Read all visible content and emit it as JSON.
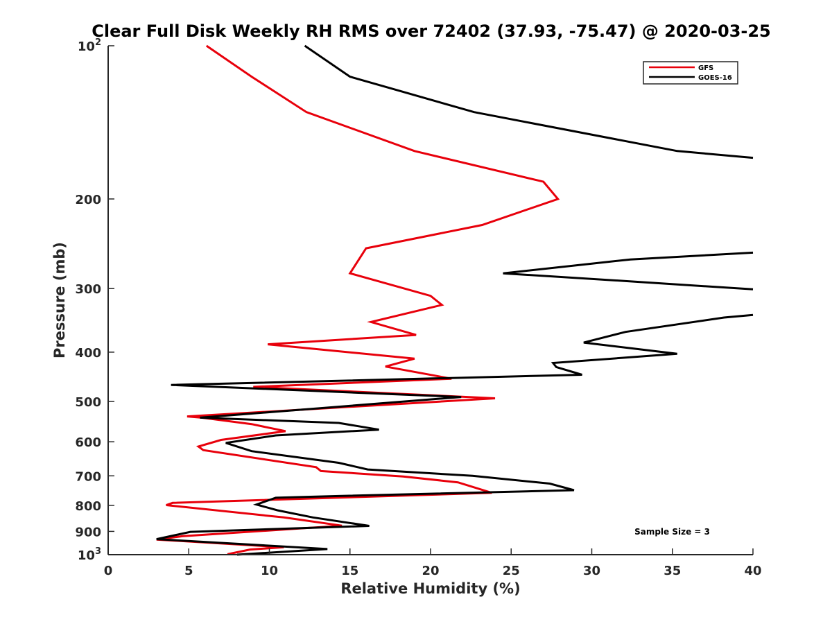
{
  "chart_data": {
    "type": "line",
    "title": "Clear Full Disk Weekly RH RMS over 72402 (37.93, -75.47) @ 2020-03-25",
    "xlabel": "Relative Humidity (%)",
    "ylabel": "Pressure (mb)",
    "xlim": [
      0,
      40
    ],
    "ylim": [
      100,
      1000
    ],
    "yscale": "log",
    "y_reversed": true,
    "x_ticks": [
      0,
      5,
      10,
      15,
      20,
      25,
      30,
      35,
      40
    ],
    "x_tick_labels": [
      "0",
      "5",
      "10",
      "15",
      "20",
      "25",
      "30",
      "35",
      "40"
    ],
    "y_ticks": [
      100,
      200,
      300,
      400,
      500,
      600,
      700,
      800,
      900,
      1000
    ],
    "y_tick_labels": [
      {
        "base": "10",
        "exp": "2"
      },
      {
        "base": "200",
        "exp": ""
      },
      {
        "base": "300",
        "exp": ""
      },
      {
        "base": "400",
        "exp": ""
      },
      {
        "base": "500",
        "exp": ""
      },
      {
        "base": "600",
        "exp": ""
      },
      {
        "base": "700",
        "exp": ""
      },
      {
        "base": "800",
        "exp": ""
      },
      {
        "base": "900",
        "exp": ""
      },
      {
        "base": "10",
        "exp": "3"
      }
    ],
    "grid": false,
    "legend_position": "top-right",
    "annotation": "Sample Size = 3",
    "series": [
      {
        "name": "GFS",
        "color": "#e8000b",
        "points": [
          [
            6.1,
            100
          ],
          [
            8.9,
            115
          ],
          [
            12.3,
            135
          ],
          [
            19.0,
            161
          ],
          [
            27.0,
            185
          ],
          [
            27.9,
            200
          ],
          [
            23.2,
            225
          ],
          [
            16.0,
            250
          ],
          [
            15.0,
            280
          ],
          [
            20.0,
            310
          ],
          [
            20.7,
            323
          ],
          [
            16.3,
            349
          ],
          [
            19.1,
            370
          ],
          [
            9.9,
            386
          ],
          [
            19.0,
            412
          ],
          [
            17.2,
            427
          ],
          [
            21.3,
            451
          ],
          [
            9.0,
            468
          ],
          [
            24.0,
            493
          ],
          [
            4.9,
            535
          ],
          [
            5.8,
            538
          ],
          [
            8.9,
            554
          ],
          [
            11.0,
            572
          ],
          [
            7.0,
            595
          ],
          [
            5.6,
            613
          ],
          [
            5.9,
            623
          ],
          [
            12.9,
            673
          ],
          [
            13.2,
            685
          ],
          [
            18.3,
            702
          ],
          [
            21.7,
            721
          ],
          [
            23.8,
            756
          ],
          [
            4.0,
            791
          ],
          [
            3.6,
            799
          ],
          [
            10.9,
            845
          ],
          [
            14.5,
            877
          ],
          [
            4.6,
            920
          ],
          [
            3.0,
            934
          ],
          [
            10.9,
            967
          ],
          [
            8.8,
            977
          ],
          [
            7.4,
            998
          ]
        ]
      },
      {
        "name": "GOES-16",
        "color": "#000000",
        "points": [
          [
            12.2,
            100
          ],
          [
            15.0,
            115
          ],
          [
            22.7,
            135
          ],
          [
            35.3,
            161
          ],
          [
            40.0,
            166
          ],
          [
            null,
            null
          ],
          [
            40.0,
            255
          ],
          [
            32.4,
            263
          ],
          [
            24.5,
            280
          ],
          [
            32.1,
            290
          ],
          [
            40.0,
            301
          ],
          [
            null,
            null
          ],
          [
            40.0,
            338
          ],
          [
            38.2,
            342
          ],
          [
            32.1,
            365
          ],
          [
            29.5,
            383
          ],
          [
            35.3,
            403
          ],
          [
            27.6,
            420
          ],
          [
            27.8,
            428
          ],
          [
            29.4,
            443
          ],
          [
            3.9,
            464
          ],
          [
            21.9,
            490
          ],
          [
            5.7,
            538
          ],
          [
            14.3,
            551
          ],
          [
            16.8,
            568
          ],
          [
            10.4,
            583
          ],
          [
            7.3,
            603
          ],
          [
            8.9,
            626
          ],
          [
            14.3,
            660
          ],
          [
            16.1,
            680
          ],
          [
            22.6,
            700
          ],
          [
            27.4,
            725
          ],
          [
            28.9,
            747
          ],
          [
            14.3,
            767
          ],
          [
            10.4,
            773
          ],
          [
            9.2,
            797
          ],
          [
            10.5,
            818
          ],
          [
            12.7,
            845
          ],
          [
            16.2,
            878
          ],
          [
            5.1,
            902
          ],
          [
            3.0,
            932
          ],
          [
            13.6,
            975
          ],
          [
            8.0,
            1000
          ]
        ]
      }
    ]
  }
}
